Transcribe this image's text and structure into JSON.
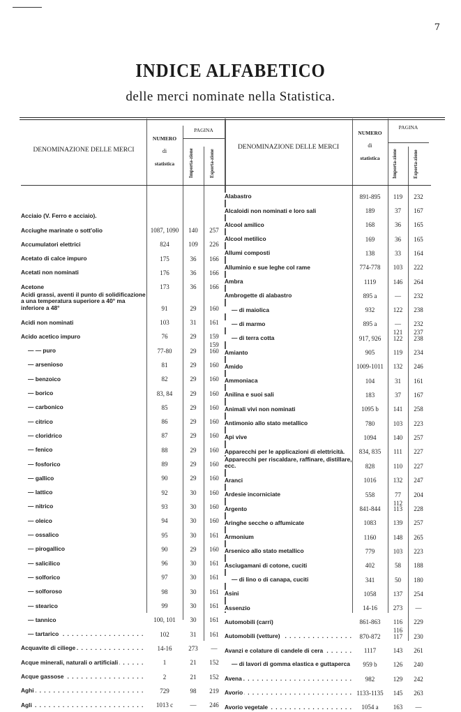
{
  "page_number": "7",
  "title": "INDICE ALFABETICO",
  "subtitle": "delle merci nominate nella Statistica.",
  "headers": {
    "denominazione": "DENOMINAZIONE DELLE MERCI",
    "numero": "NUMERO",
    "di": "di",
    "statistica": "statistica",
    "pagina": "PAGINA",
    "importazione": "Importa-zione",
    "esportazione": "Esporta-zione"
  },
  "left": [
    {
      "name": "Acciaio (V. Ferro e acciaio).",
      "num": "",
      "imp": "",
      "exp": "",
      "nodots": true
    },
    {
      "name": "Acciughe marinate o sott'olio",
      "num": "1087, 1090",
      "imp": "140",
      "exp": "257"
    },
    {
      "name": "Accumulatori elettrici",
      "num": "824",
      "imp": "109",
      "exp": "226"
    },
    {
      "name": "Acetato di calce impuro",
      "num": "175",
      "imp": "36",
      "exp": "166"
    },
    {
      "name": "Acetati non nominati",
      "num": "176",
      "imp": "36",
      "exp": "166"
    },
    {
      "name": "Acetone",
      "num": "173",
      "imp": "36",
      "exp": "166"
    },
    {
      "name": "Acidi grassi, aventi il punto di solidificazione a una temperatura superiore a 40° ma inferiore a 48°",
      "num": "91",
      "imp": "29",
      "exp": "160",
      "wrap": true
    },
    {
      "name": "Acidi non nominati",
      "num": "103",
      "imp": "31",
      "exp": "161"
    },
    {
      "name": "Acido acetico impuro",
      "num": "76",
      "imp": "29",
      "exp": "159"
    },
    {
      "name": "— — puro",
      "num": "77-80",
      "imp": "29",
      "exp": "159\n160",
      "sub": true
    },
    {
      "name": "— arsenioso",
      "num": "81",
      "imp": "29",
      "exp": "160",
      "sub": true
    },
    {
      "name": "— benzoico",
      "num": "82",
      "imp": "29",
      "exp": "160",
      "sub": true
    },
    {
      "name": "— borico",
      "num": "83, 84",
      "imp": "29",
      "exp": "160",
      "sub": true
    },
    {
      "name": "— carbonico",
      "num": "85",
      "imp": "29",
      "exp": "160",
      "sub": true
    },
    {
      "name": "— citrico",
      "num": "86",
      "imp": "29",
      "exp": "160",
      "sub": true
    },
    {
      "name": "— cloridrico",
      "num": "87",
      "imp": "29",
      "exp": "160",
      "sub": true
    },
    {
      "name": "— fenico",
      "num": "88",
      "imp": "29",
      "exp": "160",
      "sub": true
    },
    {
      "name": "— fosforico",
      "num": "89",
      "imp": "29",
      "exp": "160",
      "sub": true
    },
    {
      "name": "— gallico",
      "num": "90",
      "imp": "29",
      "exp": "160",
      "sub": true
    },
    {
      "name": "— lattico",
      "num": "92",
      "imp": "30",
      "exp": "160",
      "sub": true
    },
    {
      "name": "— nitrico",
      "num": "93",
      "imp": "30",
      "exp": "160",
      "sub": true
    },
    {
      "name": "— oleico",
      "num": "94",
      "imp": "30",
      "exp": "160",
      "sub": true
    },
    {
      "name": "— ossalico",
      "num": "95",
      "imp": "30",
      "exp": "161",
      "sub": true
    },
    {
      "name": "— pirogallico",
      "num": "90",
      "imp": "29",
      "exp": "160",
      "sub": true
    },
    {
      "name": "— salicilico",
      "num": "96",
      "imp": "30",
      "exp": "161",
      "sub": true
    },
    {
      "name": "— solforico",
      "num": "97",
      "imp": "30",
      "exp": "161",
      "sub": true
    },
    {
      "name": "— solforoso",
      "num": "98",
      "imp": "30",
      "exp": "161",
      "sub": true
    },
    {
      "name": "— stearico",
      "num": "99",
      "imp": "30",
      "exp": "161",
      "sub": true
    },
    {
      "name": "— tannico",
      "num": "100, 101",
      "imp": "30",
      "exp": "161",
      "sub": true
    },
    {
      "name": "— tartarico",
      "num": "102",
      "imp": "31",
      "exp": "161",
      "sub": true
    },
    {
      "name": "Acquavite di ciliege",
      "num": "14-16",
      "imp": "273",
      "exp": "—"
    },
    {
      "name": "Acque minerali, naturali o artificiali",
      "num": "1",
      "imp": "21",
      "exp": "152"
    },
    {
      "name": "Acque gassose",
      "num": "2",
      "imp": "21",
      "exp": "152"
    },
    {
      "name": "Aghi",
      "num": "729",
      "imp": "98",
      "exp": "219"
    },
    {
      "name": "Agli",
      "num": "1013 c",
      "imp": "—",
      "exp": "246"
    }
  ],
  "right": [
    {
      "name": "Alabastro",
      "num": "891-895",
      "imp": "119",
      "exp": "232"
    },
    {
      "name": "Alcaloidi non nominati e loro sali",
      "num": "189",
      "imp": "37",
      "exp": "167"
    },
    {
      "name": "Alcool amilico",
      "num": "168",
      "imp": "36",
      "exp": "165"
    },
    {
      "name": "Alcool metilico",
      "num": "169",
      "imp": "36",
      "exp": "165"
    },
    {
      "name": "Allumi composti",
      "num": "138",
      "imp": "33",
      "exp": "164"
    },
    {
      "name": "Alluminio e sue leghe col rame",
      "num": "774-778",
      "imp": "103",
      "exp": "222"
    },
    {
      "name": "Ambra",
      "num": "1119",
      "imp": "146",
      "exp": "264"
    },
    {
      "name": "Ambrogette di alabastro",
      "num": "895 a",
      "imp": "—",
      "exp": "232"
    },
    {
      "name": "— di maiolica",
      "num": "932",
      "imp": "122",
      "exp": "238",
      "sub": true
    },
    {
      "name": "— di marmo",
      "num": "895 a",
      "imp": "—",
      "exp": "232",
      "sub": true
    },
    {
      "name": "— di terra cotta",
      "num": "917, 926",
      "imp": "121\n122",
      "exp": "237\n238",
      "sub": true
    },
    {
      "name": "Amianto",
      "num": "905",
      "imp": "119",
      "exp": "234"
    },
    {
      "name": "Amido",
      "num": "1009-1011",
      "imp": "132",
      "exp": "246"
    },
    {
      "name": "Ammoniaca",
      "num": "104",
      "imp": "31",
      "exp": "161"
    },
    {
      "name": "Anilina e suoi sali",
      "num": "183",
      "imp": "37",
      "exp": "167"
    },
    {
      "name": "Animali vivi non nominati",
      "num": "1095 b",
      "imp": "141",
      "exp": "258"
    },
    {
      "name": "Antimonio allo stato metallico",
      "num": "780",
      "imp": "103",
      "exp": "223"
    },
    {
      "name": "Api vive",
      "num": "1094",
      "imp": "140",
      "exp": "257"
    },
    {
      "name": "Apparecchi per le applicazioni di elettricità.",
      "num": "834, 835",
      "imp": "111",
      "exp": "227",
      "nodots": true
    },
    {
      "name": "Apparecchi per riscaldare, raffinare, distillare, ecc.",
      "num": "828",
      "imp": "110",
      "exp": "227",
      "wrap": true
    },
    {
      "name": "Aranci",
      "num": "1016",
      "imp": "132",
      "exp": "247"
    },
    {
      "name": "Ardesie incorniciate",
      "num": "558",
      "imp": "77",
      "exp": "204"
    },
    {
      "name": "Argento",
      "num": "841-844",
      "imp": "112\n113",
      "exp": "228"
    },
    {
      "name": "Aringhe secche o affumicate",
      "num": "1083",
      "imp": "139",
      "exp": "257"
    },
    {
      "name": "Armonium",
      "num": "1160",
      "imp": "148",
      "exp": "265"
    },
    {
      "name": "Arsenico allo stato metallico",
      "num": "779",
      "imp": "103",
      "exp": "223"
    },
    {
      "name": "Asciugamani di cotone, cuciti",
      "num": "402",
      "imp": "58",
      "exp": "188"
    },
    {
      "name": "— di lino o di canapa, cuciti",
      "num": "341",
      "imp": "50",
      "exp": "180",
      "sub": true
    },
    {
      "name": "Asini",
      "num": "1058",
      "imp": "137",
      "exp": "254"
    },
    {
      "name": "Assenzio",
      "num": "14-16",
      "imp": "273",
      "exp": "—"
    },
    {
      "name": "Automobili (carri)",
      "num": "861-863",
      "imp": "116",
      "exp": "229"
    },
    {
      "name": "Automobili (vetture)",
      "num": "870-872",
      "imp": "116\n117",
      "exp": "230"
    },
    {
      "name": "Avanzi e colature di candele di cera",
      "num": "1117",
      "imp": "143",
      "exp": "261"
    },
    {
      "name": "— di lavori di gomma elastica e guttaperca",
      "num": "959 b",
      "imp": "126",
      "exp": "240",
      "sub": true,
      "wrap": true
    },
    {
      "name": "Avena",
      "num": "982",
      "imp": "129",
      "exp": "242"
    },
    {
      "name": "Avorio",
      "num": "1133-1135",
      "imp": "145",
      "exp": "263"
    },
    {
      "name": "Avorio vegetale",
      "num": "1054 a",
      "imp": "163",
      "exp": "—"
    }
  ]
}
